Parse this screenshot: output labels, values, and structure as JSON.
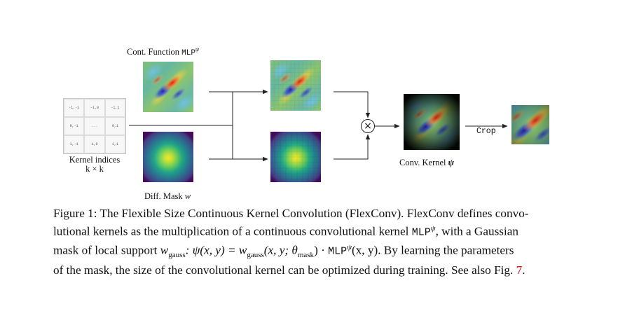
{
  "figure": {
    "label_mlp_prefix": "Cont. Function ",
    "label_mlp_mono": "MLP",
    "label_mlp_sup": "ψ",
    "label_indices_line1": "Kernel indices",
    "label_indices_line2": "k × k",
    "label_mask_prefix": "Diff. Mask ",
    "label_mask_var": "w",
    "label_conv_prefix": "Conv. Kernel ",
    "label_conv_var": "ψ",
    "label_crop": "Crop",
    "multiply_symbol": "×",
    "grid_cells": [
      "-1,-1",
      "-1,0",
      "-1,1",
      "0,-1",
      "...",
      "0,1",
      "1,-1",
      "1,0",
      "1,1"
    ]
  },
  "caption": {
    "line1": "Figure 1: The Flexible Size Continuous Kernel Convolution (FlexConv). FlexConv defines convo-",
    "line2_a": "lutional kernels as the multiplication of a continuous convolutional kernel ",
    "line2_mono": "MLP",
    "line2_sup": "ψ",
    "line2_b": ", with a Gaussian",
    "line3_a": "mask of local support ",
    "line3_w": "w",
    "line3_sub": "gauss",
    "line3_b": ": ψ(x, y) = w",
    "line3_sub2": "gauss",
    "line3_c": "(x, y; θ",
    "line3_sub3": "mask",
    "line3_d": ") · ",
    "line3_mono": "MLP",
    "line3_sup": "ψ",
    "line3_e": "(x, y). By learning the parameters",
    "line4_a": "of the mask, the size of the convolutional kernel can be optimized during training. See also Fig. ",
    "line4_ref": "7",
    "line4_b": "."
  },
  "colors": {
    "arrow": "#222222",
    "reference": "#cc0000"
  }
}
